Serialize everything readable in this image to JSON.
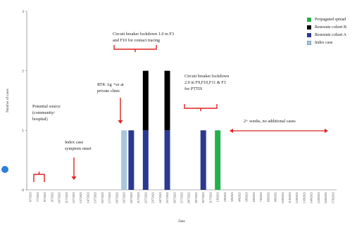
{
  "chart_data": {
    "type": "bar",
    "stacked": true,
    "categories": [
      "6/7/2021",
      "7/7/2021",
      "8/7/2021",
      "9/7/2021",
      "10/7/2021",
      "11/7/2021",
      "12/7/2021",
      "13/7/2021",
      "14/7/2021",
      "15/7/2021",
      "16/7/2021",
      "17/7/2021",
      "18/7/2021",
      "19/7/2021",
      "20/7/2021",
      "21/7/2021",
      "22/7/2021",
      "23/7/2021",
      "24/7/2021",
      "25/7/2021",
      "26/7/2021",
      "27/7/2021",
      "28/7/2021",
      "29/7/2021",
      "30/7/2021",
      "31/7/2021",
      "1/8/2021",
      "2/8/2021",
      "3/8/2021",
      "4/8/2021",
      "5/8/2021",
      "6/8/2021",
      "7/8/2021",
      "8/8/2021",
      "9/8/2021",
      "10/8/2021",
      "11/8/2021",
      "12/8/2021",
      "13/8/2021",
      "14/8/2021",
      "15/8/2021",
      "16/8/2021",
      "17/8/2021"
    ],
    "series": [
      {
        "name": "Index case",
        "color": "#a9c6dc",
        "values": [
          0,
          0,
          0,
          0,
          0,
          0,
          0,
          0,
          0,
          0,
          0,
          0,
          0,
          1,
          0,
          0,
          0,
          0,
          0,
          0,
          0,
          0,
          0,
          0,
          0,
          0,
          0,
          0,
          0,
          0,
          0,
          0,
          0,
          0,
          0,
          0,
          0,
          0,
          0,
          0,
          0,
          0,
          0
        ]
      },
      {
        "name": "Restorate cohort A",
        "color": "#2b3990",
        "values": [
          0,
          0,
          0,
          0,
          0,
          0,
          0,
          0,
          0,
          0,
          0,
          0,
          0,
          0,
          1,
          0,
          1,
          0,
          0,
          1,
          0,
          0,
          0,
          0,
          1,
          0,
          0,
          0,
          0,
          0,
          0,
          0,
          0,
          0,
          0,
          0,
          0,
          0,
          0,
          0,
          0,
          0,
          0
        ]
      },
      {
        "name": "Restorate cohort B",
        "color": "#000000",
        "values": [
          0,
          0,
          0,
          0,
          0,
          0,
          0,
          0,
          0,
          0,
          0,
          0,
          0,
          0,
          0,
          0,
          1,
          0,
          0,
          1,
          0,
          0,
          0,
          0,
          0,
          0,
          0,
          0,
          0,
          0,
          0,
          0,
          0,
          0,
          0,
          0,
          0,
          0,
          0,
          0,
          0,
          0,
          0
        ]
      },
      {
        "name": "Propagated spread",
        "color": "#22b14c",
        "values": [
          0,
          0,
          0,
          0,
          0,
          0,
          0,
          0,
          0,
          0,
          0,
          0,
          0,
          0,
          0,
          0,
          0,
          0,
          0,
          0,
          0,
          0,
          0,
          0,
          0,
          0,
          1,
          0,
          0,
          0,
          0,
          0,
          0,
          0,
          0,
          0,
          0,
          0,
          0,
          0,
          0,
          0,
          0
        ]
      }
    ],
    "legend_order": [
      "Propagated spread",
      "Restorate cohort B",
      "Restorate cohort A",
      "Index case"
    ],
    "legend_position": "top-right",
    "ylabel": "Number of cases",
    "xlabel": "Date",
    "ylim": [
      0,
      3
    ],
    "yticks": [
      0,
      1,
      2,
      3
    ],
    "grid": false
  },
  "annotations": {
    "source": "Potential source\n(community/\nhospital)",
    "index_onset": "Index case\nsymptom onset",
    "rtk": "RTK Ag +ve at\nprivate clinic",
    "cb1": "Circuit breaker lockdown 1.0 in F3\nand F10 for contact tracing",
    "cb2": "Circuit breaker lockdown\n2.0 in F9,F10,F11 & F3\nfor PTTIS",
    "no_cases": "2+ weeks, no additional cases"
  }
}
